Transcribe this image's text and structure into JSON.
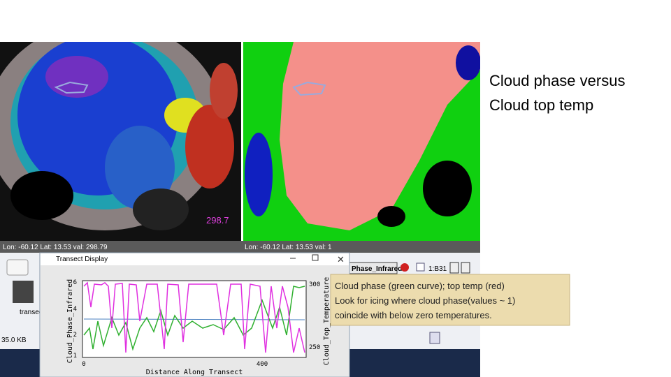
{
  "title": {
    "lines": [
      "Cloud phase versus",
      "Cloud top temp"
    ]
  },
  "caption": {
    "lines": [
      "Cloud phase (green curve); top temp (red)",
      "Look for icing where cloud phase(values ~ 1)",
      "coincide with below zero temperatures."
    ]
  },
  "screenshot": {
    "left_status": "Lon: -60.12 Lat: 13.53 val: 298.79",
    "right_status": "Lon: -60.12 Lat: 13.53 val: 1",
    "overlay_value": "298.7",
    "toolbar": {
      "layer": "Phase_Infrared",
      "band": "1:B31"
    },
    "file": {
      "name": "transec",
      "size": "35.0 KB"
    },
    "transect_window": {
      "title": "Transect Display",
      "x_label": "Distance Along Transect",
      "y_label": "Cloud_Phase_Infrared",
      "y2_label": "Cloud_Top_Temperature",
      "x_ticks": [
        "0",
        "400"
      ],
      "y_ticks": [
        "6",
        "4",
        "2",
        "1"
      ],
      "y2_ticks": [
        "300",
        "250"
      ]
    }
  }
}
